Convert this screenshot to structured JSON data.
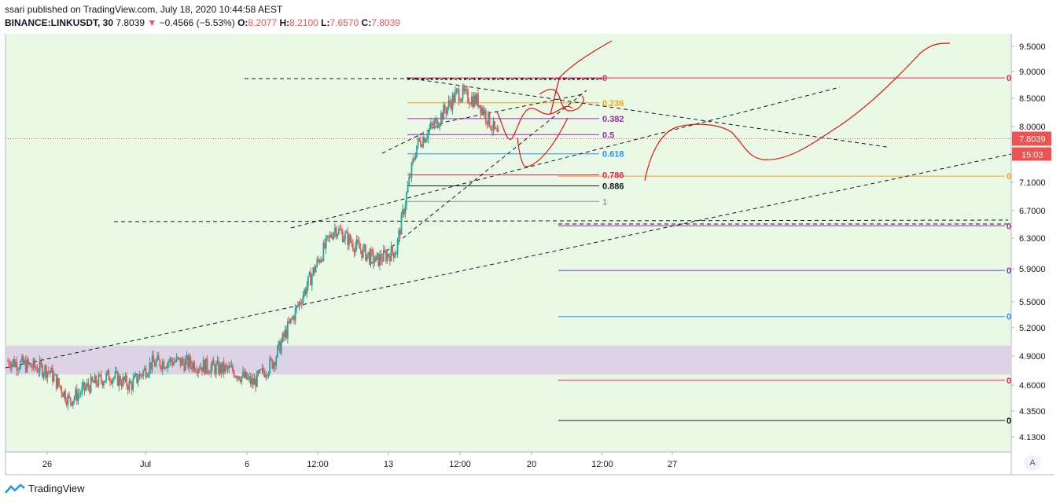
{
  "header": {
    "line1": "ssari published on TradingView.com, July 18, 2020 10:44:58 AEST",
    "symbol": "BINANCE:LINKUSDT, 30",
    "last": "7.8039",
    "change": "−0.4566 (−5.53%)",
    "o_label": "O:",
    "o": "8.2077",
    "h_label": "H:",
    "h": "8.2100",
    "l_label": "L:",
    "l": "7.6570",
    "c_label": "C:",
    "c": "7.8039"
  },
  "colors": {
    "background": "#e9f9e5",
    "up": "#26a69a",
    "down": "#ef5350",
    "path": "#e11414",
    "price_tag": "#ef5350",
    "band": "#dcd3e4"
  },
  "footer": {
    "brand": "TradingView",
    "auto_button": "A"
  },
  "chart_data": {
    "type": "candlestick",
    "symbol": "BINANCE:LINKUSDT",
    "interval": "30",
    "y_axis": {
      "ticks": [
        "9.5000",
        "9.0000",
        "8.5000",
        "8.0000",
        "7.1000",
        "6.7000",
        "6.3000",
        "5.9000",
        "5.5000",
        "5.2000",
        "4.9000",
        "4.6000",
        "4.3500",
        "4.1300"
      ],
      "range": [
        4.05,
        9.65
      ]
    },
    "x_axis": {
      "ticks": [
        "26",
        "Jul",
        "6",
        "12:00",
        "13",
        "12:00",
        "20",
        "12:00",
        "27"
      ]
    },
    "current_price": "7.8039",
    "countdown": "15:03",
    "ohlc": {
      "open": 8.2077,
      "high": 8.21,
      "low": 7.657,
      "close": 7.8039
    },
    "approx_close_path": [
      [
        "Jun 24 00:00",
        4.85
      ],
      [
        "Jun 25",
        4.8
      ],
      [
        "Jun 26",
        4.75
      ],
      [
        "Jun 27",
        4.45
      ],
      [
        "Jun 28",
        4.6
      ],
      [
        "Jun 29",
        4.7
      ],
      [
        "Jun 30",
        4.6
      ],
      [
        "Jul 1",
        4.82
      ],
      [
        "Jul 2",
        4.85
      ],
      [
        "Jul 3",
        4.82
      ],
      [
        "Jul 4",
        4.78
      ],
      [
        "Jul 5",
        4.75
      ],
      [
        "Jul 6",
        4.62
      ],
      [
        "Jul 7",
        4.85
      ],
      [
        "Jul 8",
        5.35
      ],
      [
        "Jul 9",
        5.9
      ],
      [
        "Jul 10",
        6.45
      ],
      [
        "Jul 11",
        6.2
      ],
      [
        "Jul 12",
        6.0
      ],
      [
        "Jul 13",
        6.15
      ],
      [
        "Jul 14",
        7.7
      ],
      [
        "Jul 15",
        8.1
      ],
      [
        "Jul 16",
        8.6
      ],
      [
        "Jul 17",
        8.45
      ],
      [
        "Jul 18 10:00",
        7.8
      ]
    ],
    "fib_retracement_1": {
      "levels": [
        {
          "label": "0",
          "price": 8.88,
          "color": "#e91e63"
        },
        {
          "label": "0.236",
          "price": 8.42,
          "color": "#f7a21b"
        },
        {
          "label": "0.382",
          "price": 8.14,
          "color": "#9c27b0"
        },
        {
          "label": "0.5",
          "price": 7.87,
          "color": "#9c27b0"
        },
        {
          "label": "0.618",
          "price": 7.56,
          "color": "#2196f3"
        },
        {
          "label": "0.786",
          "price": 7.22,
          "color": "#e91e63"
        },
        {
          "label": "0.886",
          "price": 7.05,
          "color": "#131722"
        },
        {
          "label": "1",
          "price": 6.83,
          "color": "#9598a1"
        }
      ]
    },
    "fib_retracement_2": {
      "levels": [
        {
          "label": "0",
          "price": 8.88,
          "color": "#e91e63"
        },
        {
          "label": "0",
          "price": 7.2,
          "color": "#f7a21b"
        },
        {
          "label": "0",
          "price": 6.48,
          "color": "#9c27b0"
        },
        {
          "label": "0",
          "price": 5.88,
          "color": "#673ab7"
        },
        {
          "label": "0",
          "price": 5.33,
          "color": "#2196f3"
        },
        {
          "label": "0",
          "price": 4.65,
          "color": "#e91e63"
        },
        {
          "label": "0",
          "price": 4.27,
          "color": "#131722"
        }
      ]
    },
    "support_zone": {
      "from": 4.71,
      "to": 5.01
    }
  }
}
